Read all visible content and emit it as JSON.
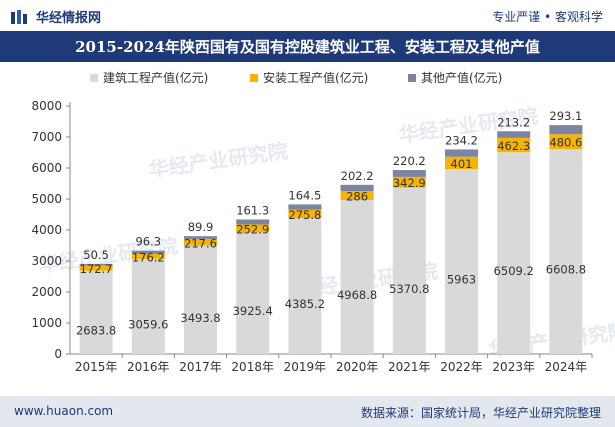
{
  "header": {
    "brand": "华经情报网",
    "slogan": "专业严谨 • 客观科学"
  },
  "footer": {
    "website": "www.huaon.com",
    "source": "数据来源：国家统计局，华经产业研究院整理"
  },
  "watermark": "华经产业研究院",
  "colors": {
    "brand_blue": "#1f3a78",
    "construction": "#d9d9d9",
    "installation": "#f5b400",
    "other": "#7b84a0"
  },
  "chart_data": {
    "type": "bar",
    "stacked": true,
    "title": "2015-2024年陕西国有及国有控股建筑业工程、安装工程及其他产值",
    "categories": [
      "2015年",
      "2016年",
      "2017年",
      "2018年",
      "2019年",
      "2020年",
      "2021年",
      "2022年",
      "2023年",
      "2024年"
    ],
    "series": [
      {
        "name": "建筑工程产值(亿元)",
        "values": [
          2683.8,
          3059.6,
          3493.8,
          3925.4,
          4385.2,
          4968.8,
          5370.8,
          5963,
          6509.2,
          6608.8
        ],
        "labels": [
          "2683.8",
          "3059.6",
          "3493.8",
          "3925.4",
          "4385.2",
          "4968.8",
          "5370.8",
          "5963",
          "6509.2",
          "6608.8"
        ]
      },
      {
        "name": "安装工程产值(亿元)",
        "values": [
          172.7,
          176.2,
          217.6,
          252.9,
          275.8,
          286,
          342.9,
          401,
          462.3,
          480.6
        ],
        "labels": [
          "172.7",
          "176.2",
          "217.6",
          "252.9",
          "275.8",
          "286",
          "342.9",
          "401",
          "462.3",
          "480.6"
        ]
      },
      {
        "name": "其他产值(亿元)",
        "values": [
          50.5,
          96.3,
          89.9,
          161.3,
          164.5,
          202.2,
          220.2,
          234.2,
          213.2,
          293.1
        ],
        "labels": [
          "50.5",
          "96.3",
          "89.9",
          "161.3",
          "164.5",
          "202.2",
          "220.2",
          "234.2",
          "213.2",
          "293.1"
        ]
      }
    ],
    "ylim": [
      0,
      8000
    ],
    "yticks": [
      "0",
      "1000",
      "2000",
      "3000",
      "4000",
      "5000",
      "6000",
      "7000",
      "8000"
    ],
    "xlabel": "",
    "ylabel": "",
    "legend_position": "top"
  }
}
